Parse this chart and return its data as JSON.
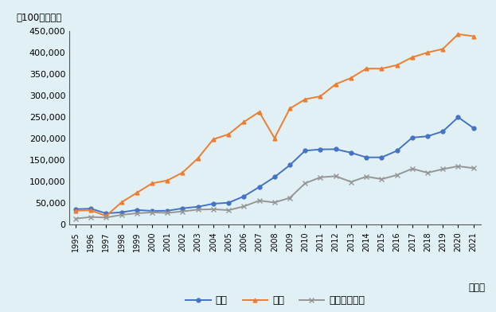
{
  "years": [
    1995,
    1996,
    1997,
    1998,
    1999,
    2000,
    2001,
    2002,
    2003,
    2004,
    2005,
    2006,
    2007,
    2008,
    2009,
    2010,
    2011,
    2012,
    2013,
    2014,
    2015,
    2016,
    2017,
    2018,
    2019,
    2020,
    2021
  ],
  "thailand": [
    36000,
    37200,
    26200,
    28800,
    34100,
    32000,
    32300,
    38000,
    41700,
    48700,
    51000,
    65900,
    87500,
    110700,
    138400,
    172100,
    175100,
    175500,
    167300,
    156500,
    156500,
    171800,
    202500,
    205600,
    217000,
    249900,
    224800
  ],
  "korea": [
    32700,
    33200,
    20300,
    51970,
    73987,
    96131,
    102800,
    121300,
    154600,
    198600,
    210300,
    238900,
    262200,
    201200,
    269900,
    291700,
    298600,
    326900,
    341300,
    363100,
    362900,
    371100,
    389300,
    400400,
    408700,
    443100,
    438300
  ],
  "indonesia": [
    13900,
    17800,
    16600,
    22700,
    26400,
    28500,
    27300,
    30800,
    35000,
    35900,
    33600,
    42500,
    55900,
    51600,
    62300,
    96200,
    110100,
    112800,
    99400,
    111900,
    105900,
    115400,
    130200,
    120700,
    129200,
    135900,
    131400
  ],
  "thailand_color": "#4472C4",
  "korea_color": "#ED7D31",
  "indonesia_color": "#969696",
  "background_color": "#e0f0f5",
  "ylabel": "（100万ドル）",
  "xlabel": "（年）",
  "legend_thailand": "タイ",
  "legend_korea": "韓国",
  "legend_indonesia": "インドネシア",
  "ylim": [
    0,
    450000
  ],
  "yticks": [
    0,
    50000,
    100000,
    150000,
    200000,
    250000,
    300000,
    350000,
    400000,
    450000
  ],
  "marker_size": 3.5,
  "linewidth": 1.4
}
